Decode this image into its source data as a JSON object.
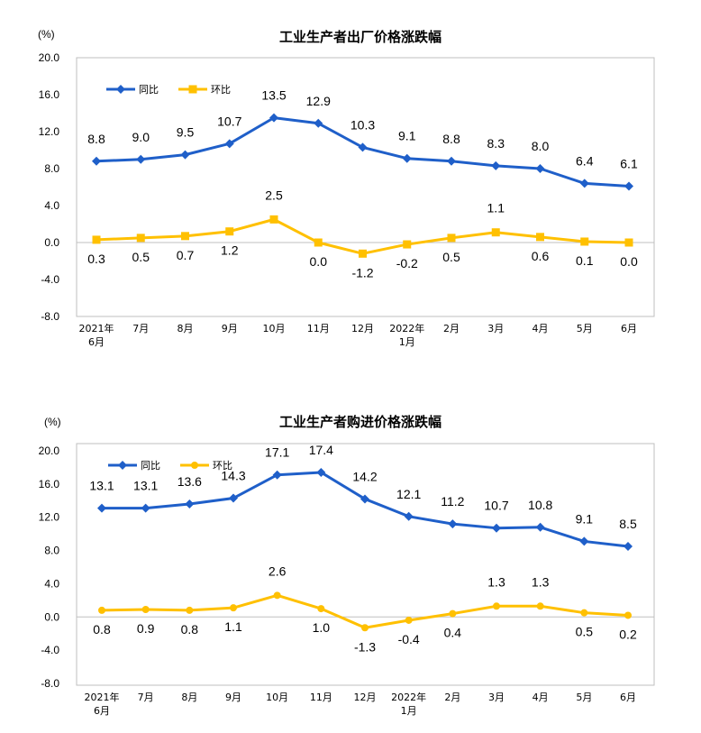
{
  "chart_data": [
    {
      "type": "line",
      "title": "工业生产者出厂价格涨跌幅",
      "unit": "(%)",
      "categories": [
        [
          "2021年",
          "6月"
        ],
        [
          "7月"
        ],
        [
          "8月"
        ],
        [
          "9月"
        ],
        [
          "10月"
        ],
        [
          "11月"
        ],
        [
          "12月"
        ],
        [
          "2022年",
          "1月"
        ],
        [
          "2月"
        ],
        [
          "3月"
        ],
        [
          "4月"
        ],
        [
          "5月"
        ],
        [
          "6月"
        ]
      ],
      "yticks": [
        "20.0",
        "16.0",
        "12.0",
        "8.0",
        "4.0",
        "0.0",
        "-4.0",
        "-8.0"
      ],
      "ylim": [
        -8,
        20
      ],
      "legend_position": "top-left",
      "grid": false,
      "series": [
        {
          "name": "同比",
          "color": "#1f5fc9",
          "marker": "diamond",
          "values": [
            8.8,
            9.0,
            9.5,
            10.7,
            13.5,
            12.9,
            10.3,
            9.1,
            8.8,
            8.3,
            8.0,
            6.4,
            6.1
          ],
          "labels": [
            "8.8",
            "9.0",
            "9.5",
            "10.7",
            "13.5",
            "12.9",
            "10.3",
            "9.1",
            "8.8",
            "8.3",
            "8.0",
            "6.4",
            "6.1"
          ]
        },
        {
          "name": "环比",
          "color": "#ffc000",
          "marker": "square",
          "values": [
            0.3,
            0.5,
            0.7,
            1.2,
            2.5,
            0.0,
            -1.2,
            -0.2,
            0.5,
            1.1,
            0.6,
            0.1,
            0.0
          ],
          "labels": [
            "0.3",
            "0.5",
            "0.7",
            "1.2",
            "2.5",
            "0.0",
            "-1.2",
            "-0.2",
            "0.5",
            "1.1",
            "0.6",
            "0.1",
            "0.0"
          ]
        }
      ]
    },
    {
      "type": "line",
      "title": "工业生产者购进价格涨跌幅",
      "unit": "(%)",
      "categories": [
        [
          "2021年",
          "6月"
        ],
        [
          "7月"
        ],
        [
          "8月"
        ],
        [
          "9月"
        ],
        [
          "10月"
        ],
        [
          "11月"
        ],
        [
          "12月"
        ],
        [
          "2022年",
          "1月"
        ],
        [
          "2月"
        ],
        [
          "3月"
        ],
        [
          "4月"
        ],
        [
          "5月"
        ],
        [
          "6月"
        ]
      ],
      "yticks": [
        "20.0",
        "16.0",
        "12.0",
        "8.0",
        "4.0",
        "0.0",
        "-4.0",
        "-8.0"
      ],
      "ylim": [
        -8,
        20
      ],
      "legend_position": "top-left",
      "grid": false,
      "series": [
        {
          "name": "同比",
          "color": "#1f5fc9",
          "marker": "diamond",
          "values": [
            13.1,
            13.1,
            13.6,
            14.3,
            17.1,
            17.4,
            14.2,
            12.1,
            11.2,
            10.7,
            10.8,
            9.1,
            8.5
          ],
          "labels": [
            "13.1",
            "13.1",
            "13.6",
            "14.3",
            "17.1",
            "17.4",
            "14.2",
            "12.1",
            "11.2",
            "10.7",
            "10.8",
            "9.1",
            "8.5"
          ]
        },
        {
          "name": "环比",
          "color": "#ffc000",
          "marker": "circle",
          "values": [
            0.8,
            0.9,
            0.8,
            1.1,
            2.6,
            1.0,
            -1.3,
            -0.4,
            0.4,
            1.3,
            1.3,
            0.5,
            0.2
          ],
          "labels": [
            "0.8",
            "0.9",
            "0.8",
            "1.1",
            "2.6",
            "1.0",
            "-1.3",
            "-0.4",
            "0.4",
            "1.3",
            "1.3",
            "0.5",
            "0.2"
          ]
        }
      ]
    }
  ]
}
